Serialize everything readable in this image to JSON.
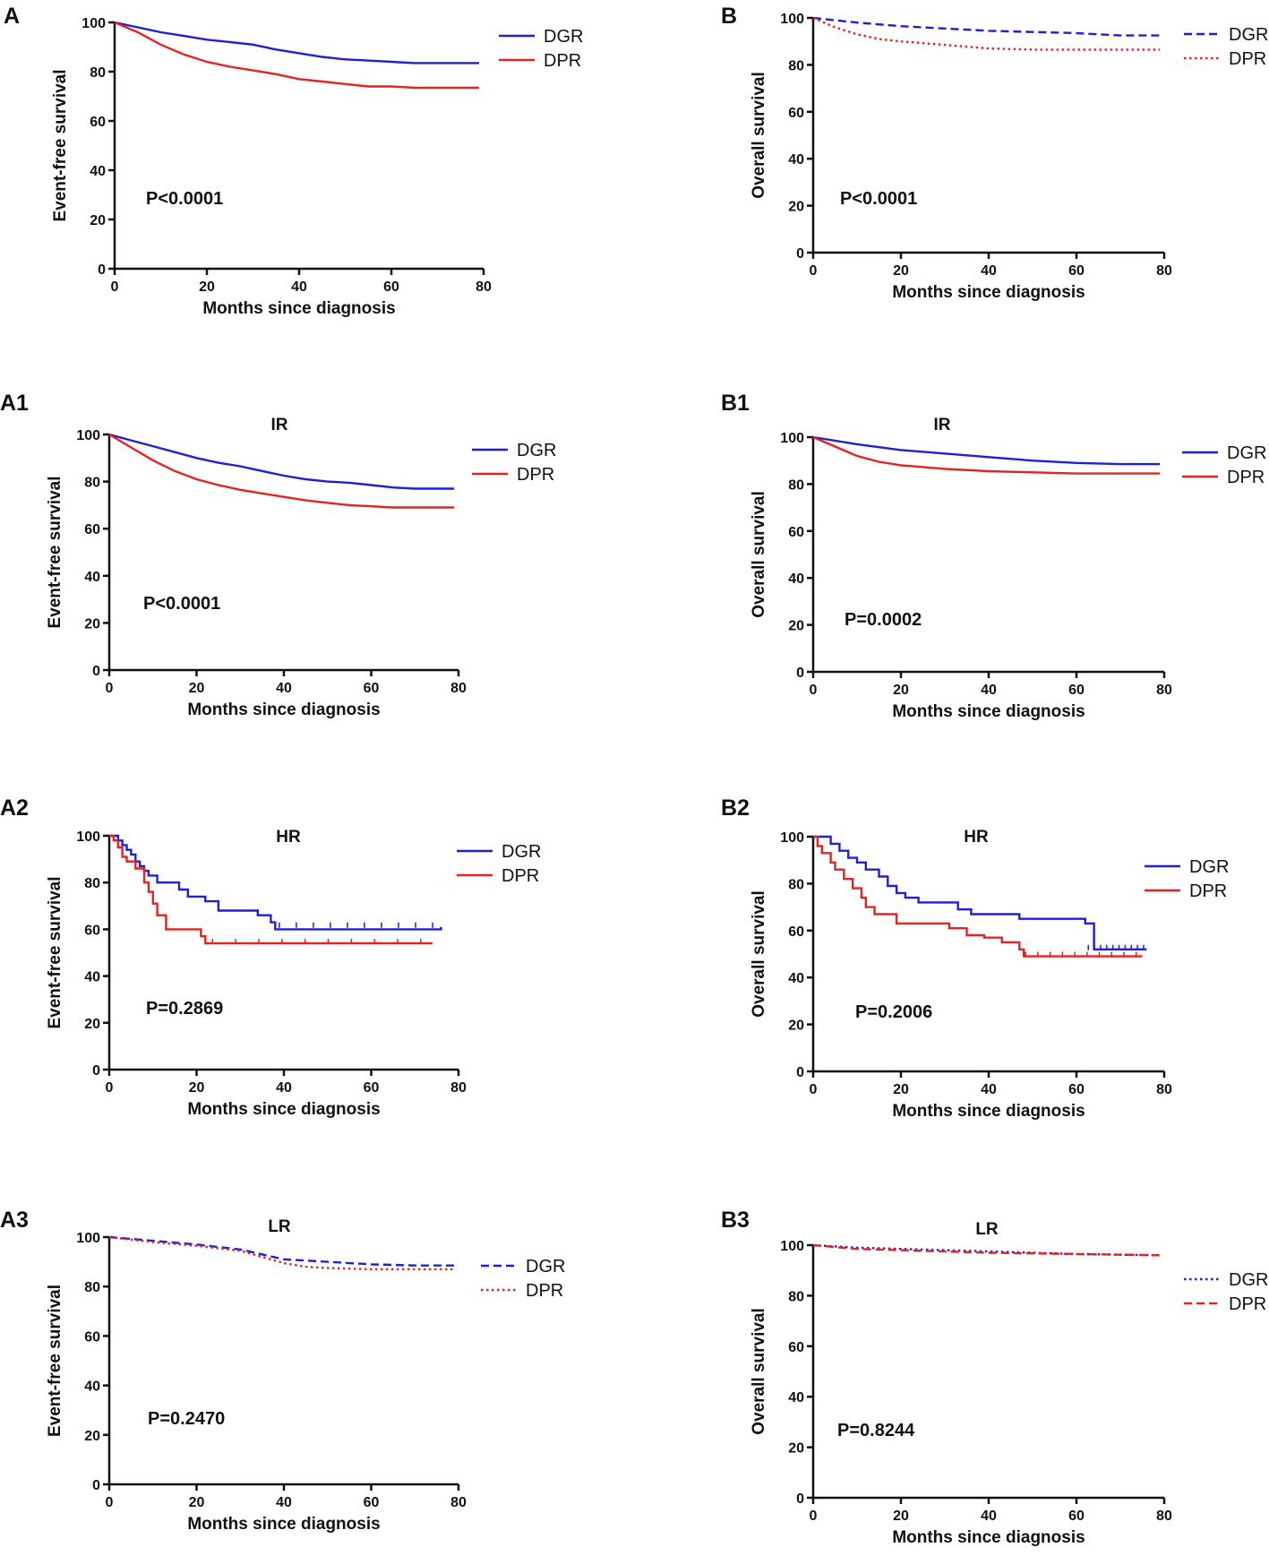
{
  "figure": {
    "panels": [
      {
        "label": "A",
        "title": "",
        "pvalue": "P<0.0001",
        "ylabel": "Event-free survival"
      },
      {
        "label": "B",
        "title": "",
        "pvalue": "P<0.0001",
        "ylabel": "Overall survival"
      },
      {
        "label": "A1",
        "title": "IR",
        "pvalue": "P<0.0001",
        "ylabel": "Event-free survival"
      },
      {
        "label": "B1",
        "title": "IR",
        "pvalue": "P=0.0002",
        "ylabel": "Overall survival"
      },
      {
        "label": "A2",
        "title": "HR",
        "pvalue": "P=0.2869",
        "ylabel": "Event-free survival"
      },
      {
        "label": "B2",
        "title": "HR",
        "pvalue": "P=0.2006",
        "ylabel": "Overall survival"
      },
      {
        "label": "A3",
        "title": "LR",
        "pvalue": "P=0.2470",
        "ylabel": "Event-free survival"
      },
      {
        "label": "B3",
        "title": "LR",
        "pvalue": "P=0.8244",
        "ylabel": "Overall survival"
      }
    ]
  },
  "colors": {
    "DGR": "#1f1fd6",
    "DPR": "#e3231f"
  },
  "chart_data": [
    {
      "type": "line",
      "panel": "A",
      "title": "",
      "xlabel": "Months since diagnosis",
      "ylabel": "Event-free survival",
      "xlim": [
        0,
        80
      ],
      "ylim": [
        0,
        100
      ],
      "xticks": [
        0,
        20,
        40,
        60,
        80
      ],
      "yticks": [
        0,
        20,
        40,
        60,
        80,
        100
      ],
      "annotation": "P<0.0001",
      "legend_position": "top-right",
      "series": [
        {
          "name": "DGR",
          "style": "solid",
          "x": [
            0,
            5,
            10,
            15,
            20,
            25,
            30,
            35,
            40,
            45,
            50,
            55,
            60,
            65,
            70,
            75,
            79
          ],
          "y": [
            100,
            98,
            96,
            94.5,
            93,
            92,
            91,
            89,
            87.5,
            86,
            85,
            84.5,
            84,
            83.5,
            83.5,
            83.5,
            83.5
          ]
        },
        {
          "name": "DPR",
          "style": "solid",
          "x": [
            0,
            5,
            10,
            15,
            20,
            25,
            30,
            35,
            40,
            45,
            50,
            55,
            60,
            65,
            70,
            75,
            79
          ],
          "y": [
            100,
            96,
            91,
            87,
            84,
            82,
            80.5,
            79,
            77,
            76,
            75,
            74,
            74,
            73.5,
            73.5,
            73.5,
            73.5
          ]
        }
      ]
    },
    {
      "type": "line",
      "panel": "B",
      "title": "",
      "xlabel": "Months since diagnosis",
      "ylabel": "Overall survival",
      "xlim": [
        0,
        80
      ],
      "ylim": [
        0,
        100
      ],
      "xticks": [
        0,
        20,
        40,
        60,
        80
      ],
      "yticks": [
        0,
        20,
        40,
        60,
        80,
        100
      ],
      "annotation": "P<0.0001",
      "legend_position": "top-right",
      "series": [
        {
          "name": "DGR",
          "style": "dashed",
          "x": [
            0,
            10,
            20,
            30,
            40,
            50,
            60,
            70,
            79
          ],
          "y": [
            100,
            98,
            96.5,
            95.5,
            94.5,
            94,
            93.5,
            92.5,
            92.5
          ]
        },
        {
          "name": "DPR",
          "style": "dotted",
          "x": [
            0,
            5,
            10,
            15,
            20,
            30,
            40,
            50,
            60,
            70,
            79
          ],
          "y": [
            100,
            96,
            93,
            91,
            90,
            88.5,
            87,
            86.5,
            86.5,
            86.5,
            86.5
          ]
        }
      ]
    },
    {
      "type": "line",
      "panel": "A1",
      "title": "IR",
      "xlabel": "Months since diagnosis",
      "ylabel": "Event-free survival",
      "xlim": [
        0,
        80
      ],
      "ylim": [
        0,
        100
      ],
      "xticks": [
        0,
        20,
        40,
        60,
        80
      ],
      "yticks": [
        0,
        20,
        40,
        60,
        80,
        100
      ],
      "annotation": "P<0.0001",
      "legend_position": "top-right",
      "series": [
        {
          "name": "DGR",
          "style": "solid",
          "x": [
            0,
            5,
            10,
            15,
            20,
            25,
            30,
            35,
            40,
            45,
            50,
            55,
            60,
            65,
            70,
            75,
            79
          ],
          "y": [
            100,
            97.5,
            95,
            92.5,
            90,
            88,
            86.5,
            84.5,
            82.5,
            81,
            80,
            79.5,
            78.5,
            77.5,
            77,
            77,
            77
          ]
        },
        {
          "name": "DPR",
          "style": "solid",
          "x": [
            0,
            5,
            10,
            15,
            20,
            25,
            30,
            35,
            40,
            45,
            50,
            55,
            60,
            65,
            70,
            75,
            79
          ],
          "y": [
            100,
            94.5,
            89,
            84.5,
            81,
            78.5,
            76.5,
            75,
            73.5,
            72,
            71,
            70,
            69.5,
            69,
            69,
            69,
            69
          ]
        }
      ]
    },
    {
      "type": "line",
      "panel": "B1",
      "title": "IR",
      "xlabel": "Months since diagnosis",
      "ylabel": "Overall survival",
      "xlim": [
        0,
        80
      ],
      "ylim": [
        0,
        100
      ],
      "xticks": [
        0,
        20,
        40,
        60,
        80
      ],
      "yticks": [
        0,
        20,
        40,
        60,
        80,
        100
      ],
      "annotation": "P=0.0002",
      "legend_position": "top-right",
      "series": [
        {
          "name": "DGR",
          "style": "solid",
          "x": [
            0,
            10,
            20,
            30,
            40,
            50,
            60,
            70,
            79
          ],
          "y": [
            100,
            97,
            94.5,
            93,
            91.5,
            90,
            89,
            88.5,
            88.5
          ]
        },
        {
          "name": "DPR",
          "style": "solid",
          "x": [
            0,
            5,
            10,
            15,
            20,
            30,
            40,
            50,
            60,
            70,
            79
          ],
          "y": [
            100,
            96,
            92,
            89.5,
            88,
            86.5,
            85.5,
            85,
            84.5,
            84.5,
            84.5
          ]
        }
      ]
    },
    {
      "type": "line",
      "panel": "A2",
      "title": "HR",
      "xlabel": "Months since diagnosis",
      "ylabel": "Event-free survival",
      "xlim": [
        0,
        80
      ],
      "ylim": [
        0,
        100
      ],
      "xticks": [
        0,
        20,
        40,
        60,
        80
      ],
      "yticks": [
        0,
        20,
        40,
        60,
        80,
        100
      ],
      "annotation": "P=0.2869",
      "legend_position": "top-right",
      "series": [
        {
          "name": "DGR",
          "style": "step",
          "x": [
            0,
            2,
            3,
            4,
            5,
            6,
            7,
            8,
            9,
            11,
            16,
            18,
            22,
            25,
            34,
            37,
            38,
            76
          ],
          "y": [
            100,
            98,
            96,
            94,
            92,
            89,
            87,
            85,
            83,
            80,
            77,
            74,
            72,
            68,
            66,
            63,
            60,
            61
          ]
        },
        {
          "name": "DPR",
          "style": "step",
          "x": [
            0,
            1,
            2,
            3,
            4,
            6,
            8,
            9,
            10,
            11,
            13,
            21,
            22,
            74
          ],
          "y": [
            100,
            98,
            95,
            91,
            89,
            86,
            80,
            76,
            71,
            66,
            60,
            57,
            54,
            54
          ]
        }
      ]
    },
    {
      "type": "line",
      "panel": "B2",
      "title": "HR",
      "xlabel": "Months since diagnosis",
      "ylabel": "Overall survival",
      "xlim": [
        0,
        80
      ],
      "ylim": [
        0,
        100
      ],
      "xticks": [
        0,
        20,
        40,
        60,
        80
      ],
      "yticks": [
        0,
        20,
        40,
        60,
        80,
        100
      ],
      "annotation": "P=0.2006",
      "legend_position": "top-right",
      "series": [
        {
          "name": "DGR",
          "style": "step",
          "x": [
            0,
            4,
            6,
            8,
            10,
            12,
            15,
            17,
            19,
            21,
            24,
            33,
            36,
            47,
            62,
            64,
            76
          ],
          "y": [
            100,
            97,
            94,
            91,
            89,
            86,
            83,
            79,
            76,
            74,
            72,
            69,
            67,
            65,
            63,
            52,
            52
          ]
        },
        {
          "name": "DPR",
          "style": "step",
          "x": [
            0,
            1,
            2,
            4,
            5,
            7,
            9,
            11,
            12,
            14,
            19,
            31,
            35,
            39,
            43,
            47,
            48,
            75
          ],
          "y": [
            100,
            96,
            93,
            89,
            86,
            82,
            78,
            74,
            70,
            67,
            63,
            61,
            58,
            57,
            55,
            52,
            49,
            49
          ]
        }
      ]
    },
    {
      "type": "line",
      "panel": "A3",
      "title": "LR",
      "xlabel": "Months since diagnosis",
      "ylabel": "Event-free survival",
      "xlim": [
        0,
        80
      ],
      "ylim": [
        0,
        100
      ],
      "xticks": [
        0,
        20,
        40,
        60,
        80
      ],
      "yticks": [
        0,
        20,
        40,
        60,
        80,
        100
      ],
      "annotation": "P=0.2470",
      "legend_position": "top-right",
      "series": [
        {
          "name": "DGR",
          "style": "dashed",
          "x": [
            0,
            10,
            20,
            30,
            35,
            40,
            50,
            60,
            70,
            79
          ],
          "y": [
            100,
            98.5,
            97,
            95,
            93,
            91,
            90,
            89,
            88.5,
            88.5
          ]
        },
        {
          "name": "DPR",
          "style": "dotted",
          "x": [
            0,
            10,
            20,
            30,
            35,
            40,
            45,
            50,
            60,
            70,
            79
          ],
          "y": [
            100,
            98,
            96.5,
            94.5,
            92,
            89.5,
            88,
            87.5,
            87,
            87,
            87
          ]
        }
      ]
    },
    {
      "type": "line",
      "panel": "B3",
      "title": "LR",
      "xlabel": "Months since diagnosis",
      "ylabel": "Overall survival",
      "xlim": [
        0,
        80
      ],
      "ylim": [
        0,
        100
      ],
      "xticks": [
        0,
        20,
        40,
        60,
        80
      ],
      "yticks": [
        0,
        20,
        40,
        60,
        80,
        100
      ],
      "annotation": "P=0.8244",
      "legend_position": "top-right",
      "series": [
        {
          "name": "DGR",
          "style": "dotted",
          "x": [
            0,
            10,
            20,
            40,
            60,
            79
          ],
          "y": [
            100,
            99,
            98.5,
            97.5,
            96.5,
            96
          ]
        },
        {
          "name": "DPR",
          "style": "dashed",
          "x": [
            0,
            10,
            20,
            40,
            60,
            79
          ],
          "y": [
            100,
            98.5,
            98,
            97,
            96.5,
            96
          ]
        }
      ]
    }
  ]
}
